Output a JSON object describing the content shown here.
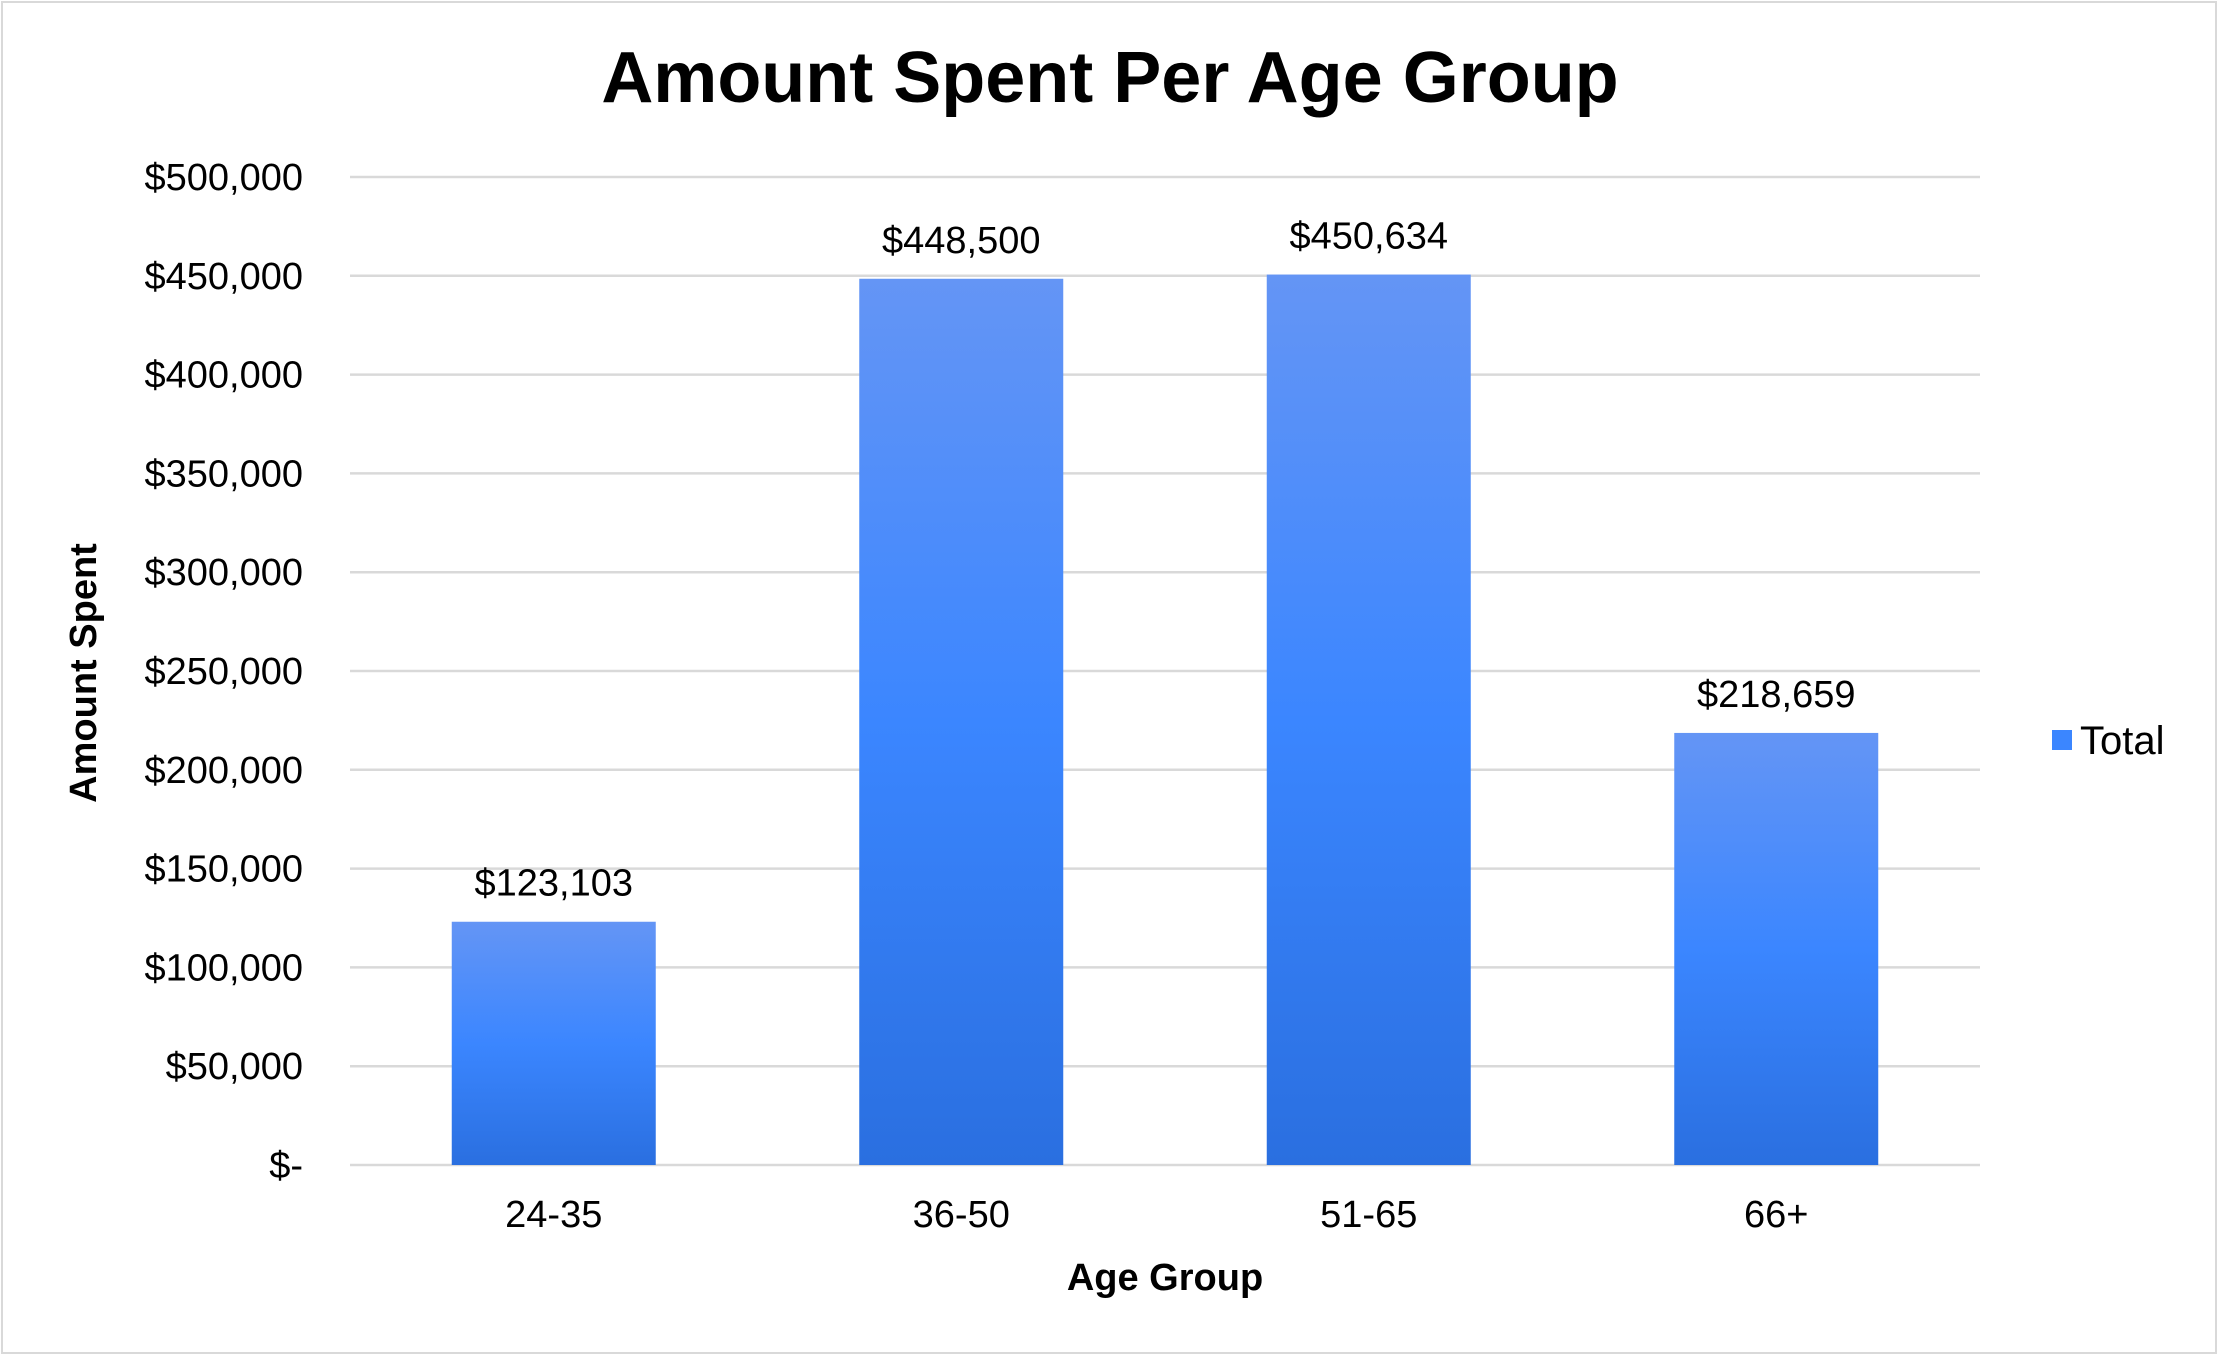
{
  "colors": {
    "bar_top": "#6495f5",
    "bar_mid": "#3b86ff",
    "bar_bottom": "#2a6fe0",
    "grid": "#d9d9d9",
    "legend_swatch": "#3b86ff"
  },
  "chart_data": {
    "type": "bar",
    "title": "Amount Spent Per Age Group",
    "xlabel": "Age Group",
    "ylabel": "Amount Spent",
    "categories": [
      "24-35",
      "36-50",
      "51-65",
      "66+"
    ],
    "series": [
      {
        "name": "Total",
        "values": [
          123103,
          448500,
          450634,
          218659
        ]
      }
    ],
    "data_labels": [
      "$123,103",
      "$448,500",
      "$450,634",
      "$218,659"
    ],
    "ylim": [
      0,
      500000
    ],
    "y_ticks": [
      0,
      50000,
      100000,
      150000,
      200000,
      250000,
      300000,
      350000,
      400000,
      450000,
      500000
    ],
    "y_tick_labels": [
      "$-",
      "$50,000",
      "$100,000",
      "$150,000",
      "$200,000",
      "$250,000",
      "$300,000",
      "$350,000",
      "$400,000",
      "$450,000",
      "$500,000"
    ],
    "grid": true,
    "legend": "right"
  }
}
